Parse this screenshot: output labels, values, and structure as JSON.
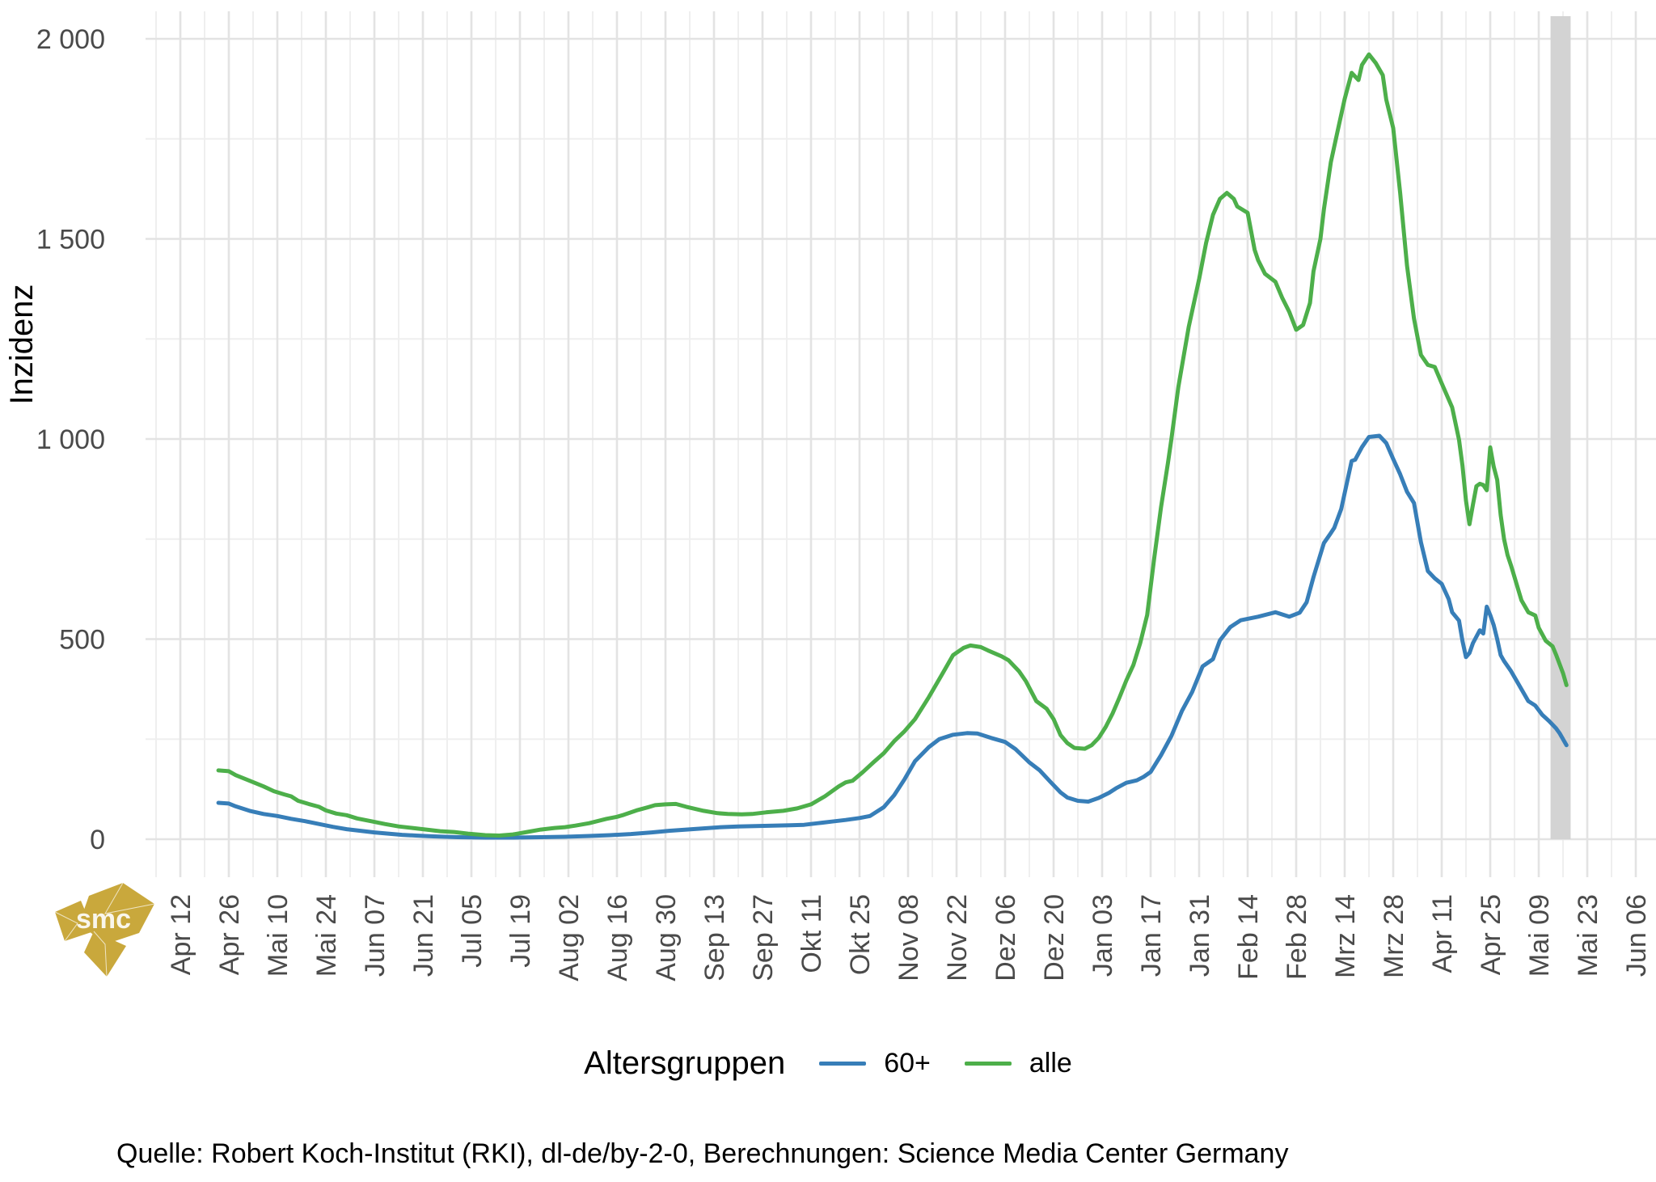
{
  "chart_data": {
    "type": "line",
    "title": "",
    "ylabel": "Inzidenz",
    "xlabel": "",
    "ylim": [
      0,
      2000
    ],
    "grid": true,
    "legend_position": "bottom",
    "y_major_ticks": [
      0,
      500,
      1000,
      1500,
      2000
    ],
    "y_tick_labels": [
      "0",
      "500",
      "1 000",
      "1 500",
      "2 000"
    ],
    "y_minor_ticks": [
      250,
      750,
      1250,
      1750
    ],
    "x_tick_labels": [
      "Apr 12",
      "Apr 26",
      "Mai 10",
      "Mai 24",
      "Jun 07",
      "Jun 21",
      "Jul 05",
      "Jul 19",
      "Aug 02",
      "Aug 16",
      "Aug 30",
      "Sep 13",
      "Sep 27",
      "Okt 11",
      "Okt 25",
      "Nov 08",
      "Nov 22",
      "Dez 06",
      "Dez 20",
      "Jan 03",
      "Jan 17",
      "Jan 31",
      "Feb 14",
      "Feb 28",
      "Mrz 14",
      "Mrz 28",
      "Apr 11",
      "Apr 25",
      "Mai 09",
      "Mai 23",
      "Jun 06"
    ],
    "x_tick_spacing_days": 14,
    "x_unit": "days since first tick (Apr 12)",
    "x_domain_days": [
      -10.5,
      425
    ],
    "highlight_band": {
      "x_start_day": 395.4,
      "x_end_day": 401.2,
      "y_from": 0,
      "y_to": 2060,
      "color": "#D3D3D3"
    },
    "series": [
      {
        "name": "60+",
        "color": "#377EB8",
        "points": [
          [
            11,
            91
          ],
          [
            14,
            89
          ],
          [
            16,
            82
          ],
          [
            20,
            71
          ],
          [
            24,
            63
          ],
          [
            28,
            58
          ],
          [
            32,
            51
          ],
          [
            36,
            45
          ],
          [
            40,
            38
          ],
          [
            44,
            31
          ],
          [
            48,
            25
          ],
          [
            52,
            21
          ],
          [
            56,
            17
          ],
          [
            60,
            14
          ],
          [
            64,
            11
          ],
          [
            68,
            9
          ],
          [
            73,
            7
          ],
          [
            80,
            5
          ],
          [
            88,
            4
          ],
          [
            96,
            4
          ],
          [
            104,
            5
          ],
          [
            111,
            6
          ],
          [
            118,
            8
          ],
          [
            124,
            10
          ],
          [
            130,
            13
          ],
          [
            136,
            17
          ],
          [
            141,
            21
          ],
          [
            146,
            24
          ],
          [
            151,
            27
          ],
          [
            156,
            30
          ],
          [
            161,
            32
          ],
          [
            166,
            33
          ],
          [
            171,
            34
          ],
          [
            176,
            35
          ],
          [
            180,
            36
          ],
          [
            184,
            40
          ],
          [
            188,
            44
          ],
          [
            192,
            48
          ],
          [
            196,
            53
          ],
          [
            199,
            58
          ],
          [
            203,
            80
          ],
          [
            206,
            110
          ],
          [
            209,
            150
          ],
          [
            212,
            195
          ],
          [
            216,
            230
          ],
          [
            219,
            250
          ],
          [
            223,
            261
          ],
          [
            227,
            265
          ],
          [
            230,
            264
          ],
          [
            234,
            253
          ],
          [
            238,
            243
          ],
          [
            241,
            225
          ],
          [
            245,
            192
          ],
          [
            248,
            172
          ],
          [
            251,
            144
          ],
          [
            254,
            117
          ],
          [
            256,
            104
          ],
          [
            259,
            96
          ],
          [
            262,
            94
          ],
          [
            265,
            103
          ],
          [
            268,
            116
          ],
          [
            270,
            127
          ],
          [
            273,
            141
          ],
          [
            276,
            147
          ],
          [
            278,
            156
          ],
          [
            280,
            168
          ],
          [
            283,
            210
          ],
          [
            286,
            258
          ],
          [
            289,
            320
          ],
          [
            292,
            368
          ],
          [
            295,
            432
          ],
          [
            298,
            450
          ],
          [
            300,
            497
          ],
          [
            303,
            530
          ],
          [
            306,
            547
          ],
          [
            311,
            556
          ],
          [
            316,
            567
          ],
          [
            320,
            556
          ],
          [
            323,
            566
          ],
          [
            325,
            592
          ],
          [
            327,
            655
          ],
          [
            330,
            740
          ],
          [
            332,
            765
          ],
          [
            333,
            778
          ],
          [
            335,
            825
          ],
          [
            338,
            945
          ],
          [
            339,
            948
          ],
          [
            341,
            980
          ],
          [
            343,
            1005
          ],
          [
            346,
            1008
          ],
          [
            348,
            990
          ],
          [
            350,
            950
          ],
          [
            352,
            912
          ],
          [
            354,
            868
          ],
          [
            356,
            840
          ],
          [
            358,
            742
          ],
          [
            360,
            670
          ],
          [
            362,
            652
          ],
          [
            364,
            638
          ],
          [
            366,
            600
          ],
          [
            367,
            567
          ],
          [
            369,
            546
          ],
          [
            370,
            495
          ],
          [
            371,
            455
          ],
          [
            372,
            465
          ],
          [
            373,
            490
          ],
          [
            375,
            522
          ],
          [
            376,
            514
          ],
          [
            377,
            581
          ],
          [
            378,
            560
          ],
          [
            379,
            535
          ],
          [
            380,
            500
          ],
          [
            381,
            460
          ],
          [
            382,
            445
          ],
          [
            384,
            420
          ],
          [
            386,
            390
          ],
          [
            389,
            345
          ],
          [
            391,
            334
          ],
          [
            393,
            311
          ],
          [
            395,
            295
          ],
          [
            397,
            277
          ],
          [
            398,
            265
          ],
          [
            399,
            250
          ],
          [
            400,
            235
          ]
        ]
      },
      {
        "name": "alle",
        "color": "#4DAF4A",
        "points": [
          [
            11,
            172
          ],
          [
            14,
            170
          ],
          [
            16,
            160
          ],
          [
            20,
            146
          ],
          [
            24,
            132
          ],
          [
            27,
            120
          ],
          [
            30,
            112
          ],
          [
            32,
            107
          ],
          [
            34,
            96
          ],
          [
            37,
            88
          ],
          [
            40,
            81
          ],
          [
            42,
            72
          ],
          [
            45,
            64
          ],
          [
            48,
            60
          ],
          [
            51,
            52
          ],
          [
            55,
            45
          ],
          [
            59,
            38
          ],
          [
            63,
            32
          ],
          [
            67,
            28
          ],
          [
            71,
            24
          ],
          [
            75,
            20
          ],
          [
            79,
            18
          ],
          [
            83,
            14
          ],
          [
            88,
            10
          ],
          [
            92,
            9
          ],
          [
            96,
            12
          ],
          [
            100,
            18
          ],
          [
            104,
            24
          ],
          [
            108,
            28
          ],
          [
            111,
            30
          ],
          [
            114,
            34
          ],
          [
            118,
            40
          ],
          [
            123,
            51
          ],
          [
            126,
            56
          ],
          [
            128,
            61
          ],
          [
            132,
            73
          ],
          [
            135,
            80
          ],
          [
            137,
            85
          ],
          [
            140,
            87
          ],
          [
            143,
            88
          ],
          [
            146,
            81
          ],
          [
            151,
            71
          ],
          [
            155,
            65
          ],
          [
            158,
            63
          ],
          [
            162,
            62
          ],
          [
            165,
            63
          ],
          [
            169,
            67
          ],
          [
            174,
            71
          ],
          [
            178,
            77
          ],
          [
            182,
            87
          ],
          [
            186,
            107
          ],
          [
            190,
            132
          ],
          [
            192,
            142
          ],
          [
            194,
            146
          ],
          [
            197,
            168
          ],
          [
            200,
            192
          ],
          [
            203,
            215
          ],
          [
            206,
            245
          ],
          [
            209,
            270
          ],
          [
            212,
            300
          ],
          [
            216,
            355
          ],
          [
            220,
            415
          ],
          [
            223,
            460
          ],
          [
            226,
            478
          ],
          [
            228,
            484
          ],
          [
            231,
            480
          ],
          [
            233,
            472
          ],
          [
            237,
            457
          ],
          [
            239,
            447
          ],
          [
            242,
            420
          ],
          [
            244,
            395
          ],
          [
            247,
            345
          ],
          [
            250,
            326
          ],
          [
            252,
            300
          ],
          [
            254,
            260
          ],
          [
            256,
            240
          ],
          [
            258,
            228
          ],
          [
            261,
            226
          ],
          [
            263,
            235
          ],
          [
            265,
            253
          ],
          [
            267,
            280
          ],
          [
            269,
            314
          ],
          [
            271,
            354
          ],
          [
            273,
            397
          ],
          [
            275,
            435
          ],
          [
            277,
            490
          ],
          [
            279,
            560
          ],
          [
            281,
            700
          ],
          [
            283,
            830
          ],
          [
            285,
            940
          ],
          [
            286,
            1000
          ],
          [
            288,
            1130
          ],
          [
            291,
            1280
          ],
          [
            294,
            1400
          ],
          [
            296,
            1490
          ],
          [
            298,
            1560
          ],
          [
            300,
            1600
          ],
          [
            302,
            1615
          ],
          [
            304,
            1600
          ],
          [
            305,
            1581
          ],
          [
            308,
            1565
          ],
          [
            310,
            1473
          ],
          [
            311,
            1447
          ],
          [
            313,
            1413
          ],
          [
            316,
            1393
          ],
          [
            318,
            1352
          ],
          [
            320,
            1318
          ],
          [
            322,
            1273
          ],
          [
            324,
            1285
          ],
          [
            326,
            1340
          ],
          [
            327,
            1419
          ],
          [
            329,
            1500
          ],
          [
            330,
            1574
          ],
          [
            332,
            1692
          ],
          [
            334,
            1771
          ],
          [
            336,
            1850
          ],
          [
            338,
            1915
          ],
          [
            340,
            1897
          ],
          [
            341,
            1935
          ],
          [
            343,
            1961
          ],
          [
            345,
            1939
          ],
          [
            347,
            1909
          ],
          [
            348,
            1848
          ],
          [
            350,
            1777
          ],
          [
            352,
            1615
          ],
          [
            354,
            1433
          ],
          [
            356,
            1301
          ],
          [
            358,
            1210
          ],
          [
            360,
            1185
          ],
          [
            362,
            1180
          ],
          [
            364,
            1139
          ],
          [
            367,
            1079
          ],
          [
            369,
            998
          ],
          [
            370,
            933
          ],
          [
            371,
            846
          ],
          [
            372,
            787
          ],
          [
            373,
            836
          ],
          [
            374,
            882
          ],
          [
            375,
            888
          ],
          [
            376,
            885
          ],
          [
            377,
            872
          ],
          [
            378,
            979
          ],
          [
            379,
            931
          ],
          [
            380,
            898
          ],
          [
            381,
            810
          ],
          [
            382,
            750
          ],
          [
            383,
            710
          ],
          [
            384,
            684
          ],
          [
            387,
            597
          ],
          [
            389,
            567
          ],
          [
            391,
            559
          ],
          [
            392,
            528
          ],
          [
            394,
            496
          ],
          [
            396,
            482
          ],
          [
            397,
            461
          ],
          [
            399,
            415
          ],
          [
            400,
            385
          ]
        ]
      }
    ]
  },
  "axis": {
    "y_title": "Inzidenz",
    "tick_color": "#4a4a4a",
    "grid_major_color": "#e3e3e3",
    "grid_minor_color": "#efefef"
  },
  "legend": {
    "title": "Altersgruppen",
    "items": [
      {
        "label": "60+",
        "color": "#377EB8"
      },
      {
        "label": "alle",
        "color": "#4DAF4A"
      }
    ]
  },
  "caption": {
    "text": "Quelle: Robert Koch-Institut (RKI), dl-de/by-2-0, Berechnungen: Science Media Center Germany"
  },
  "logo": {
    "text": "smc",
    "color": "#C9A83C"
  }
}
